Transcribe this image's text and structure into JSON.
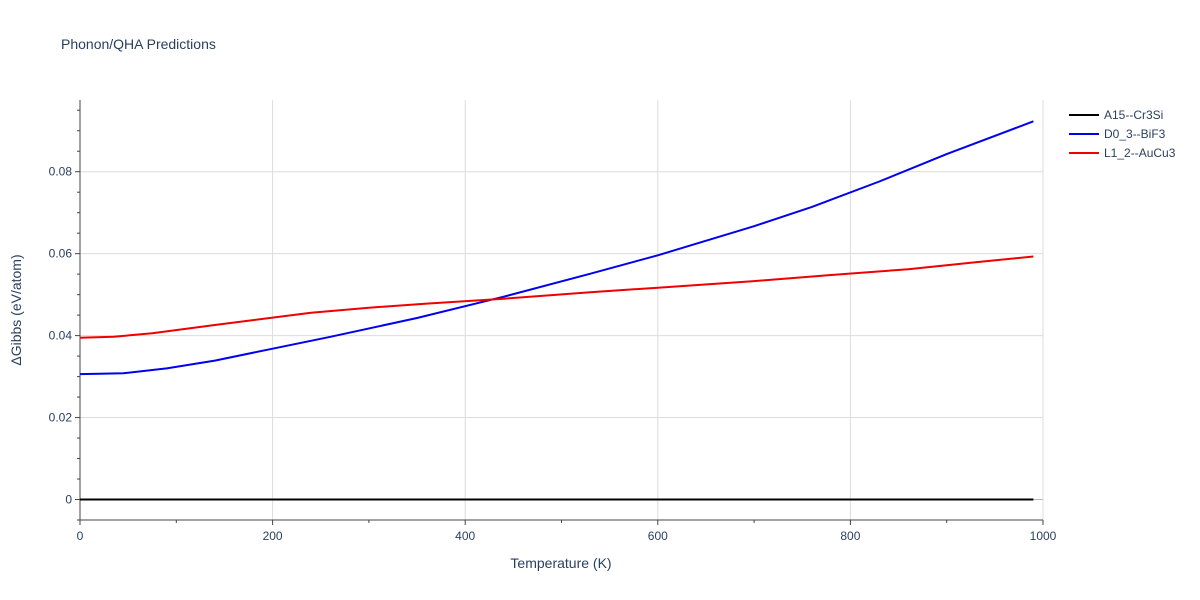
{
  "chart_data": {
    "type": "line",
    "title": "Phonon/QHA Predictions",
    "xlabel": "Temperature (K)",
    "ylabel": "ΔGibbs (eV/atom)",
    "xlim": [
      0,
      1000
    ],
    "ylim": [
      -0.005,
      0.0975
    ],
    "x_ticks": [
      0,
      200,
      400,
      600,
      800,
      1000
    ],
    "x_tick_labels": [
      "0",
      "200",
      "400",
      "600",
      "800",
      "1000"
    ],
    "y_ticks": [
      0,
      0.02,
      0.04,
      0.06,
      0.08
    ],
    "y_tick_labels": [
      "0",
      "0.02",
      "0.04",
      "0.06",
      "0.08"
    ],
    "grid": true,
    "legend_position": "top-right",
    "series": [
      {
        "name": "A15--Cr3Si",
        "color": "#000000",
        "x": [
          0,
          100,
          200,
          300,
          400,
          500,
          600,
          700,
          800,
          900,
          990
        ],
        "y": [
          0,
          0,
          0,
          0,
          0,
          0,
          0,
          0,
          0,
          0,
          0
        ]
      },
      {
        "name": "D0_3--BiF3",
        "color": "#0000ee",
        "x": [
          0,
          20,
          45,
          90,
          140,
          200,
          260,
          350,
          440,
          530,
          600,
          700,
          760,
          830,
          900,
          990
        ],
        "y": [
          0.0306,
          0.0307,
          0.0308,
          0.032,
          0.0339,
          0.0368,
          0.0397,
          0.0443,
          0.0495,
          0.0551,
          0.0596,
          0.0667,
          0.0714,
          0.0776,
          0.0843,
          0.0923
        ]
      },
      {
        "name": "L1_2--AuCu3",
        "color": "#ee0000",
        "x": [
          0,
          35,
          75,
          140,
          200,
          240,
          300,
          360,
          440,
          530,
          600,
          700,
          780,
          860,
          930,
          990
        ],
        "y": [
          0.0395,
          0.0397,
          0.0406,
          0.0426,
          0.0444,
          0.0456,
          0.0468,
          0.0478,
          0.049,
          0.0506,
          0.0517,
          0.0533,
          0.0548,
          0.0562,
          0.0579,
          0.0593
        ]
      }
    ]
  }
}
